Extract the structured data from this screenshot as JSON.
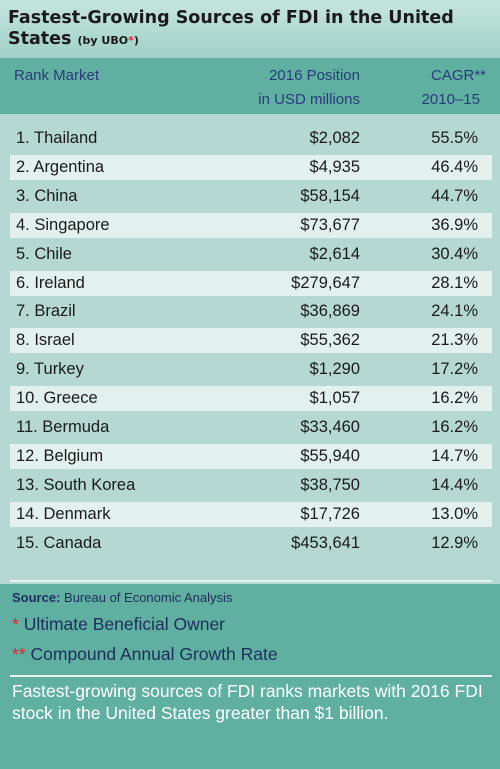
{
  "title": {
    "main": "Fastest-Growing Sources of FDI in the United States",
    "sub_prefix": "(by UBO",
    "sub_star": "*",
    "sub_suffix": ")"
  },
  "columns": {
    "rank_market": "Rank Market",
    "position_line1": "2016 Position",
    "position_line2": "in USD millions",
    "cagr_line1": "CAGR**",
    "cagr_line2": "2010–15"
  },
  "rows": [
    {
      "rank": "1.",
      "market": "Thailand",
      "position": "$2,082",
      "cagr": "55.5%"
    },
    {
      "rank": "2.",
      "market": "Argentina",
      "position": "$4,935",
      "cagr": "46.4%"
    },
    {
      "rank": "3.",
      "market": "China",
      "position": "$58,154",
      "cagr": "44.7%"
    },
    {
      "rank": "4.",
      "market": "Singapore",
      "position": "$73,677",
      "cagr": "36.9%"
    },
    {
      "rank": "5.",
      "market": "Chile",
      "position": "$2,614",
      "cagr": "30.4%"
    },
    {
      "rank": "6.",
      "market": "Ireland",
      "position": "$279,647",
      "cagr": "28.1%"
    },
    {
      "rank": "7.",
      "market": "Brazil",
      "position": "$36,869",
      "cagr": "24.1%"
    },
    {
      "rank": "8.",
      "market": "Israel",
      "position": "$55,362",
      "cagr": "21.3%"
    },
    {
      "rank": "9.",
      "market": "Turkey",
      "position": "$1,290",
      "cagr": "17.2%"
    },
    {
      "rank": "10.",
      "market": "Greece",
      "position": "$1,057",
      "cagr": "16.2%"
    },
    {
      "rank": "11.",
      "market": "Bermuda",
      "position": "$33,460",
      "cagr": "16.2%"
    },
    {
      "rank": "12.",
      "market": "Belgium",
      "position": "$55,940",
      "cagr": "14.7%"
    },
    {
      "rank": "13.",
      "market": "South Korea",
      "position": "$38,750",
      "cagr": "14.4%"
    },
    {
      "rank": "14.",
      "market": "Denmark",
      "position": "$17,726",
      "cagr": "13.0%"
    },
    {
      "rank": "15.",
      "market": "Canada",
      "position": "$453,641",
      "cagr": "12.9%"
    }
  ],
  "footer": {
    "source_label": "Source:",
    "source_text": "Bureau of Economic Analysis",
    "note1_mark": "*",
    "note1_text": "Ultimate Beneficial Owner",
    "note2_mark": "**",
    "note2_text": "Compound Annual Growth Rate",
    "description": "Fastest-growing sources of FDI ranks markets with 2016 FDI stock in the United States greater than $1 billion."
  },
  "colors": {
    "header_band": "#5fb0a1",
    "row_light": "#e3f1ee",
    "row_dark": "#b5d9d2",
    "accent_red": "#e8232c",
    "text_navy": "#1f2d5c"
  }
}
